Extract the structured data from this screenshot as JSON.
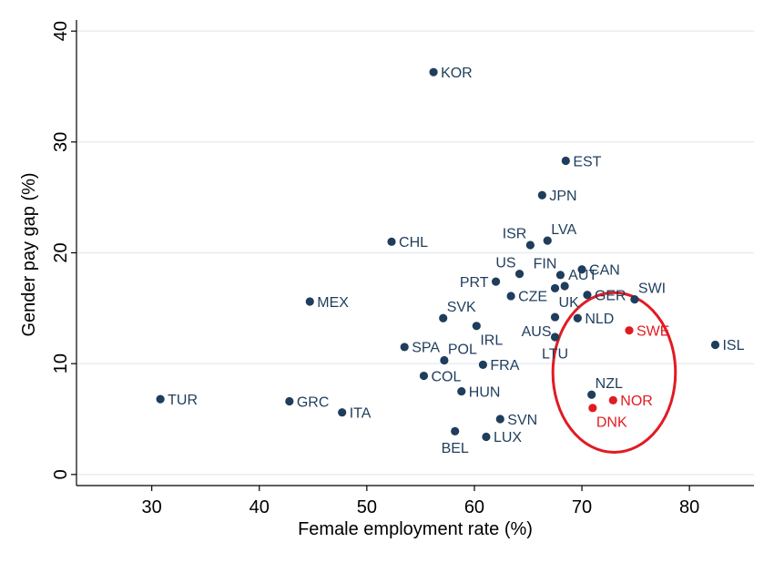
{
  "chart_data": {
    "type": "scatter",
    "title": "",
    "xlabel": "Female employment rate (%)",
    "ylabel": "Gender pay gap (%)",
    "xlim": [
      23,
      86
    ],
    "ylim": [
      -1,
      41
    ],
    "xticks": [
      30,
      40,
      50,
      60,
      70,
      80
    ],
    "yticks": [
      0,
      10,
      20,
      30,
      40
    ],
    "grid": "horizontal",
    "legend": "none",
    "colors": {
      "default": "#1f3d5c",
      "highlight": "#e11b22",
      "grid": "#e6eef2",
      "ellipse": "#e11b22"
    },
    "highlight_ellipse": {
      "center": [
        73,
        9.2
      ],
      "rx_units": 5.7,
      "ry_units": 7.2
    },
    "points": [
      {
        "label": "KOR",
        "x": 56.2,
        "y": 36.3,
        "highlight": false,
        "pos": "right"
      },
      {
        "label": "EST",
        "x": 68.5,
        "y": 28.3,
        "highlight": false,
        "pos": "right"
      },
      {
        "label": "JPN",
        "x": 66.3,
        "y": 25.2,
        "highlight": false,
        "pos": "right"
      },
      {
        "label": "CHL",
        "x": 52.3,
        "y": 21.0,
        "highlight": false,
        "pos": "right"
      },
      {
        "label": "LVA",
        "x": 66.8,
        "y": 21.1,
        "highlight": false,
        "pos": "upright"
      },
      {
        "label": "ISR",
        "x": 65.2,
        "y": 20.7,
        "highlight": false,
        "pos": "upleft"
      },
      {
        "label": "FIN",
        "x": 68.0,
        "y": 18.0,
        "highlight": false,
        "pos": "upleft"
      },
      {
        "label": "CAN",
        "x": 70.0,
        "y": 18.5,
        "highlight": false,
        "pos": "right"
      },
      {
        "label": "US",
        "x": 64.2,
        "y": 18.1,
        "highlight": false,
        "pos": "upleft"
      },
      {
        "label": "PRT",
        "x": 62.0,
        "y": 17.4,
        "highlight": false,
        "pos": "left"
      },
      {
        "label": "AUT",
        "x": 68.4,
        "y": 17.0,
        "highlight": false,
        "pos": "upright"
      },
      {
        "label": "UK",
        "x": 67.5,
        "y": 16.8,
        "highlight": false,
        "pos": "downright"
      },
      {
        "label": "CZE",
        "x": 63.4,
        "y": 16.1,
        "highlight": false,
        "pos": "right"
      },
      {
        "label": "GER",
        "x": 70.5,
        "y": 16.2,
        "highlight": false,
        "pos": "right"
      },
      {
        "label": "SWI",
        "x": 74.9,
        "y": 15.8,
        "highlight": false,
        "pos": "upright"
      },
      {
        "label": "MEX",
        "x": 44.7,
        "y": 15.6,
        "highlight": false,
        "pos": "right"
      },
      {
        "label": "SVK",
        "x": 57.1,
        "y": 14.1,
        "highlight": false,
        "pos": "upright"
      },
      {
        "label": "NLD",
        "x": 69.6,
        "y": 14.1,
        "highlight": false,
        "pos": "right"
      },
      {
        "label": "AUS",
        "x": 67.5,
        "y": 14.2,
        "highlight": false,
        "pos": "downleft"
      },
      {
        "label": "IRL",
        "x": 60.2,
        "y": 13.4,
        "highlight": false,
        "pos": "downright"
      },
      {
        "label": "LTU",
        "x": 67.5,
        "y": 12.4,
        "highlight": false,
        "pos": "downcenter"
      },
      {
        "label": "SWE",
        "x": 74.4,
        "y": 13.0,
        "highlight": true,
        "pos": "right"
      },
      {
        "label": "ISL",
        "x": 82.4,
        "y": 11.7,
        "highlight": false,
        "pos": "right"
      },
      {
        "label": "SPA",
        "x": 53.5,
        "y": 11.5,
        "highlight": false,
        "pos": "right"
      },
      {
        "label": "POL",
        "x": 57.2,
        "y": 10.3,
        "highlight": false,
        "pos": "upright"
      },
      {
        "label": "FRA",
        "x": 60.8,
        "y": 9.9,
        "highlight": false,
        "pos": "right"
      },
      {
        "label": "COL",
        "x": 55.3,
        "y": 8.9,
        "highlight": false,
        "pos": "right"
      },
      {
        "label": "NZL",
        "x": 70.9,
        "y": 7.2,
        "highlight": false,
        "pos": "upright"
      },
      {
        "label": "HUN",
        "x": 58.8,
        "y": 7.5,
        "highlight": false,
        "pos": "right"
      },
      {
        "label": "TUR",
        "x": 30.8,
        "y": 6.8,
        "highlight": false,
        "pos": "right"
      },
      {
        "label": "GRC",
        "x": 42.8,
        "y": 6.6,
        "highlight": false,
        "pos": "right"
      },
      {
        "label": "NOR",
        "x": 72.9,
        "y": 6.7,
        "highlight": true,
        "pos": "right"
      },
      {
        "label": "DNK",
        "x": 71.0,
        "y": 6.0,
        "highlight": true,
        "pos": "downright"
      },
      {
        "label": "ITA",
        "x": 47.7,
        "y": 5.6,
        "highlight": false,
        "pos": "right"
      },
      {
        "label": "SVN",
        "x": 62.4,
        "y": 5.0,
        "highlight": false,
        "pos": "right"
      },
      {
        "label": "BEL",
        "x": 58.2,
        "y": 3.9,
        "highlight": false,
        "pos": "downcenter"
      },
      {
        "label": "LUX",
        "x": 61.1,
        "y": 3.4,
        "highlight": false,
        "pos": "right"
      }
    ]
  }
}
